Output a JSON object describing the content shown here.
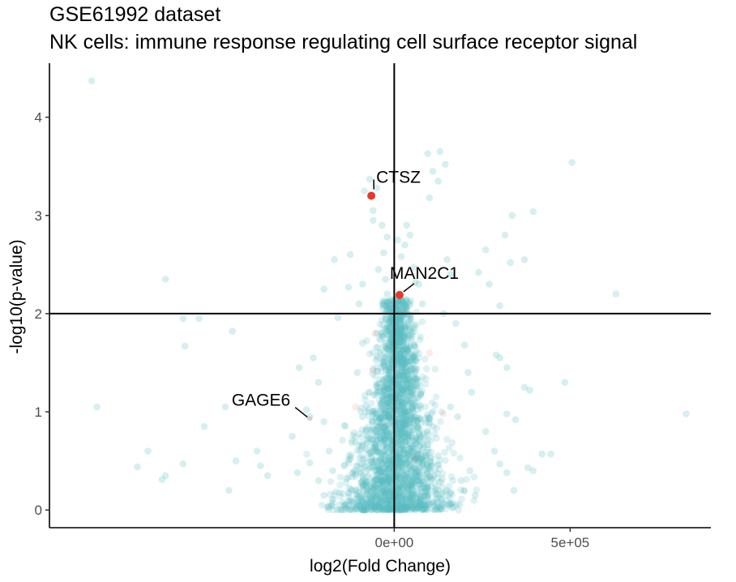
{
  "chart_data": {
    "type": "scatter",
    "title": "GSE61992 dataset",
    "subtitle": "NK cells: immune response regulating cell surface receptor signal",
    "xlabel": "log2(Fold Change)",
    "ylabel": "-log10(p-value)",
    "xlim": [
      -980000,
      900000
    ],
    "ylim": [
      -0.18,
      4.55
    ],
    "xticks": [
      0,
      500000
    ],
    "xtick_labels": [
      "0e+00",
      "5e+05"
    ],
    "yticks": [
      0,
      1,
      2,
      3,
      4
    ],
    "ytick_labels": [
      "0",
      "1",
      "2",
      "3",
      "4"
    ],
    "hline": 2,
    "vline": 0,
    "grid": false,
    "legend": "none",
    "colors": {
      "background_points": "#5bc0c4",
      "highlight_points": "#e8392b"
    },
    "background_points": [
      [
        -860000,
        4.37
      ],
      [
        -650000,
        2.35
      ],
      [
        -600000,
        1.95
      ],
      [
        -555000,
        1.95
      ],
      [
        -595000,
        1.67
      ],
      [
        -460000,
        1.82
      ],
      [
        -480000,
        1.05
      ],
      [
        -845000,
        1.05
      ],
      [
        -700000,
        0.6
      ],
      [
        -730000,
        0.44
      ],
      [
        -650000,
        0.35
      ],
      [
        -660000,
        0.31
      ],
      [
        -600000,
        0.47
      ],
      [
        -540000,
        0.85
      ],
      [
        -450000,
        0.5
      ],
      [
        -390000,
        0.6
      ],
      [
        -380000,
        0.45
      ],
      [
        -360000,
        0.35
      ],
      [
        -470000,
        0.2
      ],
      [
        -290000,
        0.75
      ],
      [
        -270000,
        1.45
      ],
      [
        -250000,
        1.02
      ],
      [
        -240000,
        0.95
      ],
      [
        -215000,
        1.3
      ],
      [
        -200000,
        0.9
      ],
      [
        -185000,
        0.6
      ],
      [
        -160000,
        1.96
      ],
      [
        -230000,
        1.55
      ],
      [
        -200000,
        2.25
      ],
      [
        -130000,
        2.27
      ],
      [
        -170000,
        2.55
      ],
      [
        -125000,
        2.6
      ],
      [
        -100000,
        2.1
      ],
      [
        -90000,
        2.3
      ],
      [
        -105000,
        1.4
      ],
      [
        -240000,
        0.48
      ],
      [
        -275000,
        0.38
      ],
      [
        -215000,
        0.3
      ],
      [
        -200000,
        0.15
      ],
      [
        -175000,
        0.4
      ],
      [
        -135000,
        0.32
      ],
      [
        -140000,
        0.05
      ],
      [
        -90000,
        1.7
      ],
      [
        -80000,
        1.06
      ],
      [
        -70000,
        3.37
      ],
      [
        -85000,
        3.25
      ],
      [
        -60000,
        3.05
      ],
      [
        -50000,
        3.28
      ],
      [
        -35000,
        2.9
      ],
      [
        -60000,
        2.95
      ],
      [
        -20000,
        2.78
      ],
      [
        -30000,
        2.62
      ],
      [
        -45000,
        2.45
      ],
      [
        -25000,
        2.35
      ],
      [
        -20000,
        2.2
      ],
      [
        -15000,
        2.12
      ],
      [
        -50000,
        1.8
      ],
      [
        -35000,
        1.5
      ],
      [
        -10000,
        1.9
      ],
      [
        -55000,
        0.75
      ],
      [
        -120000,
        0.2
      ],
      [
        -95000,
        0.28
      ],
      [
        -90000,
        0.95
      ],
      [
        -65000,
        0.55
      ],
      [
        -45000,
        1.25
      ],
      [
        -25000,
        0.3
      ],
      [
        10000,
        2.75
      ],
      [
        20000,
        2.58
      ],
      [
        30000,
        2.7
      ],
      [
        35000,
        2.9
      ],
      [
        45000,
        2.8
      ],
      [
        55000,
        2.47
      ],
      [
        60000,
        2.32
      ],
      [
        70000,
        2.3
      ],
      [
        80000,
        2.1
      ],
      [
        95000,
        3.63
      ],
      [
        110000,
        3.45
      ],
      [
        100000,
        3.18
      ],
      [
        130000,
        3.65
      ],
      [
        145000,
        3.52
      ],
      [
        125000,
        3.35
      ],
      [
        150000,
        2.55
      ],
      [
        160000,
        2.4
      ],
      [
        140000,
        2.0
      ],
      [
        175000,
        1.9
      ],
      [
        200000,
        1.68
      ],
      [
        210000,
        1.4
      ],
      [
        220000,
        1.2
      ],
      [
        160000,
        1.05
      ],
      [
        180000,
        0.95
      ],
      [
        240000,
        2.42
      ],
      [
        260000,
        2.65
      ],
      [
        270000,
        2.3
      ],
      [
        300000,
        2.08
      ],
      [
        290000,
        1.58
      ],
      [
        300000,
        1.55
      ],
      [
        320000,
        1.45
      ],
      [
        330000,
        2.52
      ],
      [
        335000,
        3.0
      ],
      [
        315000,
        2.8
      ],
      [
        370000,
        2.55
      ],
      [
        395000,
        3.04
      ],
      [
        345000,
        0.92
      ],
      [
        320000,
        0.98
      ],
      [
        260000,
        0.8
      ],
      [
        285000,
        0.6
      ],
      [
        300000,
        0.47
      ],
      [
        320000,
        0.38
      ],
      [
        340000,
        0.2
      ],
      [
        370000,
        1.25
      ],
      [
        385000,
        1.22
      ],
      [
        420000,
        0.57
      ],
      [
        445000,
        0.57
      ],
      [
        380000,
        0.43
      ],
      [
        395000,
        0.4
      ],
      [
        485000,
        1.3
      ],
      [
        505000,
        3.54
      ],
      [
        630000,
        2.2
      ],
      [
        830000,
        0.98
      ],
      [
        215000,
        0.4
      ],
      [
        230000,
        0.15
      ],
      [
        190000,
        0.3
      ],
      [
        150000,
        0.2
      ],
      [
        125000,
        0.55
      ],
      [
        110000,
        0.85
      ]
    ],
    "highlighted_genes": [
      {
        "gene": "CTSZ",
        "x": -65000,
        "y": 3.2
      },
      {
        "gene": "MAN2C1",
        "x": 15000,
        "y": 2.19
      },
      {
        "gene": "GAGE6",
        "x": -240000,
        "y": 0.93
      }
    ],
    "faded_highlight_points": [
      [
        -110000,
        1.05
      ],
      [
        -55000,
        1.8
      ],
      [
        -60000,
        1.42
      ],
      [
        100000,
        1.6
      ],
      [
        140000,
        0.98
      ],
      [
        60000,
        0.52
      ]
    ]
  }
}
